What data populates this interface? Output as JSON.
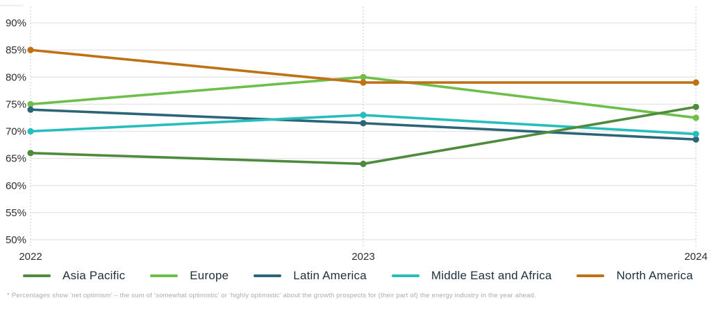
{
  "chart_data": {
    "type": "line",
    "title": "",
    "xlabel": "",
    "ylabel": "",
    "x_labels": [
      "2022",
      "2023",
      "2024"
    ],
    "y_ticks": [
      "90%",
      "85%",
      "80%",
      "75%",
      "70%",
      "65%",
      "60%",
      "55%",
      "50%"
    ],
    "ylim": [
      50,
      90
    ],
    "y_tick_step": 5,
    "grid": true,
    "legend_position": "bottom",
    "series": [
      {
        "name": "Asia Pacific",
        "color": "#4e8b3c",
        "values": [
          66,
          64,
          74.5
        ]
      },
      {
        "name": "Europe",
        "color": "#6dbf4a",
        "values": [
          75,
          80,
          72.5
        ]
      },
      {
        "name": "Latin America",
        "color": "#2c6577",
        "values": [
          74,
          71.5,
          68.5
        ]
      },
      {
        "name": "Middle East and Africa",
        "color": "#27bdbd",
        "values": [
          70,
          73,
          69.5
        ]
      },
      {
        "name": "North America",
        "color": "#bf7115",
        "values": [
          85,
          79,
          79
        ]
      }
    ],
    "draw_order": [
      1,
      2,
      3,
      4,
      0
    ],
    "colors": {
      "gridline": "#e3e3e3",
      "dotted_guide": "#c4c4c4",
      "tick_text": "#2d2d2d",
      "legend_text": "#1d2e3c",
      "footnote_text": "#a9acae"
    }
  },
  "footnote": "* Percentages show ‘net optimism’ – the sum of ‘somewhat optimistic’ or ‘highly optimistic’ about the growth prospects for (their part of) the energy industry in the year ahead."
}
